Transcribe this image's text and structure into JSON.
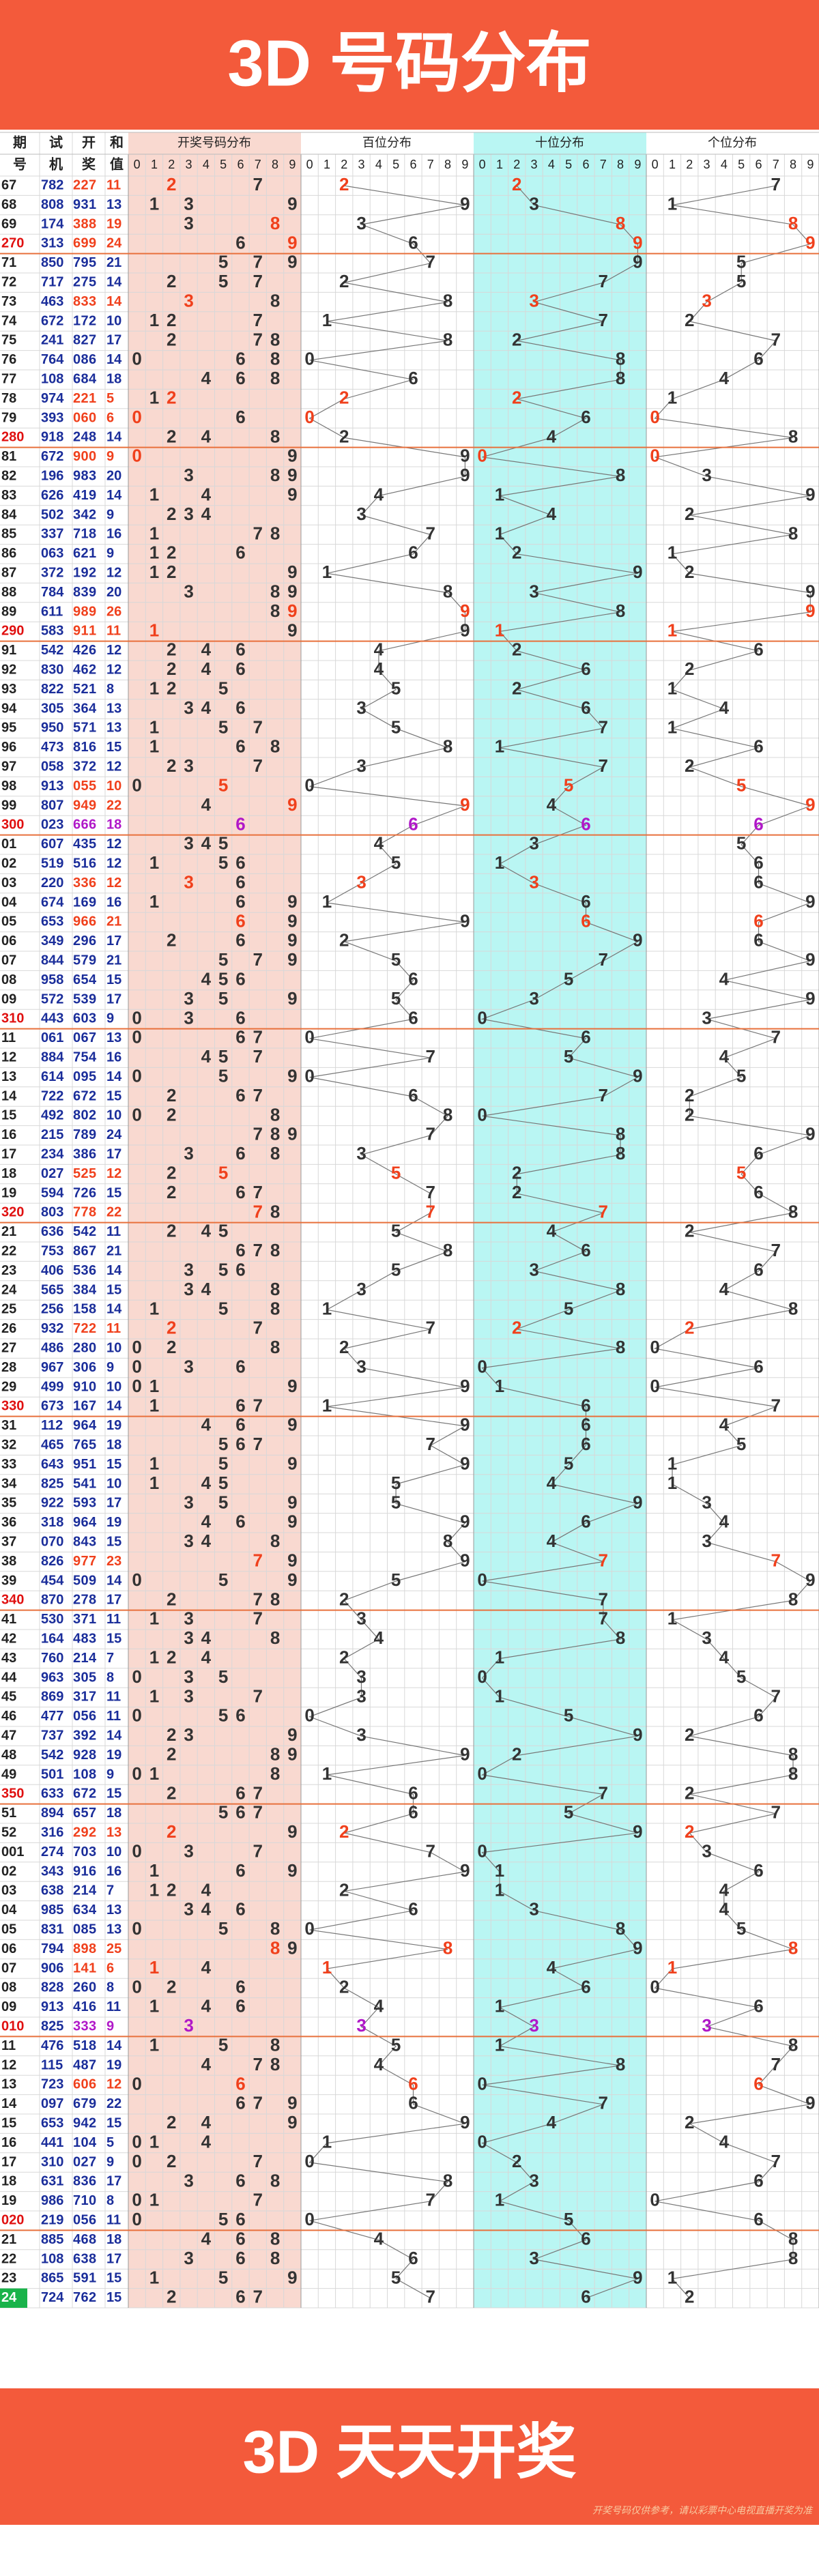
{
  "title": "3D 号码分布",
  "headers": {
    "period": [
      "期",
      "号"
    ],
    "trial": [
      "试",
      "机"
    ],
    "draw": [
      "开",
      "奖"
    ],
    "sum": [
      "和",
      "值"
    ],
    "blocks": [
      "开奖号码分布",
      "百位分布",
      "十位分布",
      "个位分布"
    ]
  },
  "digits": [
    0,
    1,
    2,
    3,
    4,
    5,
    6,
    7,
    8,
    9
  ],
  "rows": [
    {
      "period": "67",
      "trial": "782",
      "draw": [
        2,
        2,
        7
      ],
      "sum": 11
    },
    {
      "period": "68",
      "trial": "808",
      "draw": [
        9,
        3,
        1
      ],
      "sum": 13
    },
    {
      "period": "69",
      "trial": "174",
      "draw": [
        3,
        8,
        8
      ],
      "sum": 19
    },
    {
      "period": "270",
      "trial": "313",
      "draw": [
        6,
        9,
        9
      ],
      "sum": 24
    },
    {
      "period": "71",
      "trial": "850",
      "draw": [
        7,
        9,
        5
      ],
      "sum": 21
    },
    {
      "period": "72",
      "trial": "717",
      "draw": [
        2,
        7,
        5
      ],
      "sum": 14
    },
    {
      "period": "73",
      "trial": "463",
      "draw": [
        8,
        3,
        3
      ],
      "sum": 14
    },
    {
      "period": "74",
      "trial": "672",
      "draw": [
        1,
        7,
        2
      ],
      "sum": 10
    },
    {
      "period": "75",
      "trial": "241",
      "draw": [
        8,
        2,
        7
      ],
      "sum": 17
    },
    {
      "period": "76",
      "trial": "764",
      "draw": [
        0,
        8,
        6
      ],
      "sum": 14
    },
    {
      "period": "77",
      "trial": "108",
      "draw": [
        6,
        8,
        4
      ],
      "sum": 18
    },
    {
      "period": "78",
      "trial": "974",
      "draw": [
        2,
        2,
        1
      ],
      "sum": 5
    },
    {
      "period": "79",
      "trial": "393",
      "draw": [
        0,
        6,
        0
      ],
      "sum": 6
    },
    {
      "period": "280",
      "trial": "918",
      "draw": [
        2,
        4,
        8
      ],
      "sum": 14
    },
    {
      "period": "81",
      "trial": "672",
      "draw": [
        9,
        0,
        0
      ],
      "sum": 9
    },
    {
      "period": "82",
      "trial": "196",
      "draw": [
        9,
        8,
        3
      ],
      "sum": 20
    },
    {
      "period": "83",
      "trial": "626",
      "draw": [
        4,
        1,
        9
      ],
      "sum": 14
    },
    {
      "period": "84",
      "trial": "502",
      "draw": [
        3,
        4,
        2
      ],
      "sum": 9
    },
    {
      "period": "85",
      "trial": "337",
      "draw": [
        7,
        1,
        8
      ],
      "sum": 16
    },
    {
      "period": "86",
      "trial": "063",
      "draw": [
        6,
        2,
        1
      ],
      "sum": 9
    },
    {
      "period": "87",
      "trial": "372",
      "draw": [
        1,
        9,
        2
      ],
      "sum": 12
    },
    {
      "period": "88",
      "trial": "784",
      "draw": [
        8,
        3,
        9
      ],
      "sum": 20
    },
    {
      "period": "89",
      "trial": "611",
      "draw": [
        9,
        8,
        9
      ],
      "sum": 26
    },
    {
      "period": "290",
      "trial": "583",
      "draw": [
        9,
        1,
        1
      ],
      "sum": 11
    },
    {
      "period": "91",
      "trial": "542",
      "draw": [
        4,
        2,
        6
      ],
      "sum": 12
    },
    {
      "period": "92",
      "trial": "830",
      "draw": [
        4,
        6,
        2
      ],
      "sum": 12
    },
    {
      "period": "93",
      "trial": "822",
      "draw": [
        5,
        2,
        1
      ],
      "sum": 8
    },
    {
      "period": "94",
      "trial": "305",
      "draw": [
        3,
        6,
        4
      ],
      "sum": 13
    },
    {
      "period": "95",
      "trial": "950",
      "draw": [
        5,
        7,
        1
      ],
      "sum": 13
    },
    {
      "period": "96",
      "trial": "473",
      "draw": [
        8,
        1,
        6
      ],
      "sum": 15
    },
    {
      "period": "97",
      "trial": "058",
      "draw": [
        3,
        7,
        2
      ],
      "sum": 12
    },
    {
      "period": "98",
      "trial": "913",
      "draw": [
        0,
        5,
        5
      ],
      "sum": 10
    },
    {
      "period": "99",
      "trial": "807",
      "draw": [
        9,
        4,
        9
      ],
      "sum": 22
    },
    {
      "period": "300",
      "trial": "023",
      "draw": [
        6,
        6,
        6
      ],
      "sum": 18
    },
    {
      "period": "01",
      "trial": "607",
      "draw": [
        4,
        3,
        5
      ],
      "sum": 12
    },
    {
      "period": "02",
      "trial": "519",
      "draw": [
        5,
        1,
        6
      ],
      "sum": 12
    },
    {
      "period": "03",
      "trial": "220",
      "draw": [
        3,
        3,
        6
      ],
      "sum": 12
    },
    {
      "period": "04",
      "trial": "674",
      "draw": [
        1,
        6,
        9
      ],
      "sum": 16
    },
    {
      "period": "05",
      "trial": "653",
      "draw": [
        9,
        6,
        6
      ],
      "sum": 21
    },
    {
      "period": "06",
      "trial": "349",
      "draw": [
        2,
        9,
        6
      ],
      "sum": 17
    },
    {
      "period": "07",
      "trial": "844",
      "draw": [
        5,
        7,
        9
      ],
      "sum": 21
    },
    {
      "period": "08",
      "trial": "958",
      "draw": [
        6,
        5,
        4
      ],
      "sum": 15
    },
    {
      "period": "09",
      "trial": "572",
      "draw": [
        5,
        3,
        9
      ],
      "sum": 17
    },
    {
      "period": "310",
      "trial": "443",
      "draw": [
        6,
        0,
        3
      ],
      "sum": 9
    },
    {
      "period": "11",
      "trial": "061",
      "draw": [
        0,
        6,
        7
      ],
      "sum": 13
    },
    {
      "period": "12",
      "trial": "884",
      "draw": [
        7,
        5,
        4
      ],
      "sum": 16
    },
    {
      "period": "13",
      "trial": "614",
      "draw": [
        0,
        9,
        5
      ],
      "sum": 14
    },
    {
      "period": "14",
      "trial": "722",
      "draw": [
        6,
        7,
        2
      ],
      "sum": 15
    },
    {
      "period": "15",
      "trial": "492",
      "draw": [
        8,
        0,
        2
      ],
      "sum": 10
    },
    {
      "period": "16",
      "trial": "215",
      "draw": [
        7,
        8,
        9
      ],
      "sum": 24
    },
    {
      "period": "17",
      "trial": "234",
      "draw": [
        3,
        8,
        6
      ],
      "sum": 17
    },
    {
      "period": "18",
      "trial": "027",
      "draw": [
        5,
        2,
        5
      ],
      "sum": 12
    },
    {
      "period": "19",
      "trial": "594",
      "draw": [
        7,
        2,
        6
      ],
      "sum": 15
    },
    {
      "period": "320",
      "trial": "803",
      "draw": [
        7,
        7,
        8
      ],
      "sum": 22
    },
    {
      "period": "21",
      "trial": "636",
      "draw": [
        5,
        4,
        2
      ],
      "sum": 11
    },
    {
      "period": "22",
      "trial": "753",
      "draw": [
        8,
        6,
        7
      ],
      "sum": 21
    },
    {
      "period": "23",
      "trial": "406",
      "draw": [
        5,
        3,
        6
      ],
      "sum": 14
    },
    {
      "period": "24",
      "trial": "565",
      "draw": [
        3,
        8,
        4
      ],
      "sum": 15
    },
    {
      "period": "25",
      "trial": "256",
      "draw": [
        1,
        5,
        8
      ],
      "sum": 14
    },
    {
      "period": "26",
      "trial": "932",
      "draw": [
        7,
        2,
        2
      ],
      "sum": 11
    },
    {
      "period": "27",
      "trial": "486",
      "draw": [
        2,
        8,
        0
      ],
      "sum": 10
    },
    {
      "period": "28",
      "trial": "967",
      "draw": [
        3,
        0,
        6
      ],
      "sum": 9
    },
    {
      "period": "29",
      "trial": "499",
      "draw": [
        9,
        1,
        0
      ],
      "sum": 10
    },
    {
      "period": "330",
      "trial": "673",
      "draw": [
        1,
        6,
        7
      ],
      "sum": 14
    },
    {
      "period": "31",
      "trial": "112",
      "draw": [
        9,
        6,
        4
      ],
      "sum": 19
    },
    {
      "period": "32",
      "trial": "465",
      "draw": [
        7,
        6,
        5
      ],
      "sum": 18
    },
    {
      "period": "33",
      "trial": "643",
      "draw": [
        9,
        5,
        1
      ],
      "sum": 15
    },
    {
      "period": "34",
      "trial": "825",
      "draw": [
        5,
        4,
        1
      ],
      "sum": 10
    },
    {
      "period": "35",
      "trial": "922",
      "draw": [
        5,
        9,
        3
      ],
      "sum": 17
    },
    {
      "period": "36",
      "trial": "318",
      "draw": [
        9,
        6,
        4
      ],
      "sum": 19
    },
    {
      "period": "37",
      "trial": "070",
      "draw": [
        8,
        4,
        3
      ],
      "sum": 15
    },
    {
      "period": "38",
      "trial": "826",
      "draw": [
        9,
        7,
        7
      ],
      "sum": 23
    },
    {
      "period": "39",
      "trial": "454",
      "draw": [
        5,
        0,
        9
      ],
      "sum": 14
    },
    {
      "period": "340",
      "trial": "870",
      "draw": [
        2,
        7,
        8
      ],
      "sum": 17
    },
    {
      "period": "41",
      "trial": "530",
      "draw": [
        3,
        7,
        1
      ],
      "sum": 11
    },
    {
      "period": "42",
      "trial": "164",
      "draw": [
        4,
        8,
        3
      ],
      "sum": 15
    },
    {
      "period": "43",
      "trial": "760",
      "draw": [
        2,
        1,
        4
      ],
      "sum": 7
    },
    {
      "period": "44",
      "trial": "963",
      "draw": [
        3,
        0,
        5
      ],
      "sum": 8
    },
    {
      "period": "45",
      "trial": "869",
      "draw": [
        3,
        1,
        7
      ],
      "sum": 11
    },
    {
      "period": "46",
      "trial": "477",
      "draw": [
        0,
        5,
        6
      ],
      "sum": 11
    },
    {
      "period": "47",
      "trial": "737",
      "draw": [
        3,
        9,
        2
      ],
      "sum": 14
    },
    {
      "period": "48",
      "trial": "542",
      "draw": [
        9,
        2,
        8
      ],
      "sum": 19
    },
    {
      "period": "49",
      "trial": "501",
      "draw": [
        1,
        0,
        8
      ],
      "sum": 9
    },
    {
      "period": "350",
      "trial": "633",
      "draw": [
        6,
        7,
        2
      ],
      "sum": 15
    },
    {
      "period": "51",
      "trial": "894",
      "draw": [
        6,
        5,
        7
      ],
      "sum": 18
    },
    {
      "period": "52",
      "trial": "316",
      "draw": [
        2,
        9,
        2
      ],
      "sum": 13
    },
    {
      "period": "001",
      "trial": "274",
      "draw": [
        7,
        0,
        3
      ],
      "sum": 10
    },
    {
      "period": "02",
      "trial": "343",
      "draw": [
        9,
        1,
        6
      ],
      "sum": 16
    },
    {
      "period": "03",
      "trial": "638",
      "draw": [
        2,
        1,
        4
      ],
      "sum": 7
    },
    {
      "period": "04",
      "trial": "985",
      "draw": [
        6,
        3,
        4
      ],
      "sum": 13
    },
    {
      "period": "05",
      "trial": "831",
      "draw": [
        0,
        8,
        5
      ],
      "sum": 13
    },
    {
      "period": "06",
      "trial": "794",
      "draw": [
        8,
        9,
        8
      ],
      "sum": 25
    },
    {
      "period": "07",
      "trial": "906",
      "draw": [
        1,
        4,
        1
      ],
      "sum": 6
    },
    {
      "period": "08",
      "trial": "828",
      "draw": [
        2,
        6,
        0
      ],
      "sum": 8
    },
    {
      "period": "09",
      "trial": "913",
      "draw": [
        4,
        1,
        6
      ],
      "sum": 11
    },
    {
      "period": "010",
      "trial": "825",
      "draw": [
        3,
        3,
        3
      ],
      "sum": 9
    },
    {
      "period": "11",
      "trial": "476",
      "draw": [
        5,
        1,
        8
      ],
      "sum": 14
    },
    {
      "period": "12",
      "trial": "115",
      "draw": [
        4,
        8,
        7
      ],
      "sum": 19
    },
    {
      "period": "13",
      "trial": "723",
      "draw": [
        6,
        0,
        6
      ],
      "sum": 12
    },
    {
      "period": "14",
      "trial": "097",
      "draw": [
        6,
        7,
        9
      ],
      "sum": 22
    },
    {
      "period": "15",
      "trial": "653",
      "draw": [
        9,
        4,
        2
      ],
      "sum": 15
    },
    {
      "period": "16",
      "trial": "441",
      "draw": [
        1,
        0,
        4
      ],
      "sum": 5
    },
    {
      "period": "17",
      "trial": "310",
      "draw": [
        0,
        2,
        7
      ],
      "sum": 9
    },
    {
      "period": "18",
      "trial": "631",
      "draw": [
        8,
        3,
        6
      ],
      "sum": 17
    },
    {
      "period": "19",
      "trial": "986",
      "draw": [
        7,
        1,
        0
      ],
      "sum": 8
    },
    {
      "period": "020",
      "trial": "219",
      "draw": [
        0,
        5,
        6
      ],
      "sum": 11
    },
    {
      "period": "21",
      "trial": "885",
      "draw": [
        4,
        6,
        8
      ],
      "sum": 18
    },
    {
      "period": "22",
      "trial": "108",
      "draw": [
        6,
        3,
        8
      ],
      "sum": 17
    },
    {
      "period": "23",
      "trial": "865",
      "draw": [
        5,
        9,
        1
      ],
      "sum": 15
    },
    {
      "period": "24",
      "trial": "724",
      "draw": [
        7,
        6,
        2
      ],
      "sum": 15
    }
  ],
  "footer": {
    "title": "3D 天天开奖",
    "note": "开奖号码仅供参考，请以彩票中心电视直播开奖为准"
  }
}
